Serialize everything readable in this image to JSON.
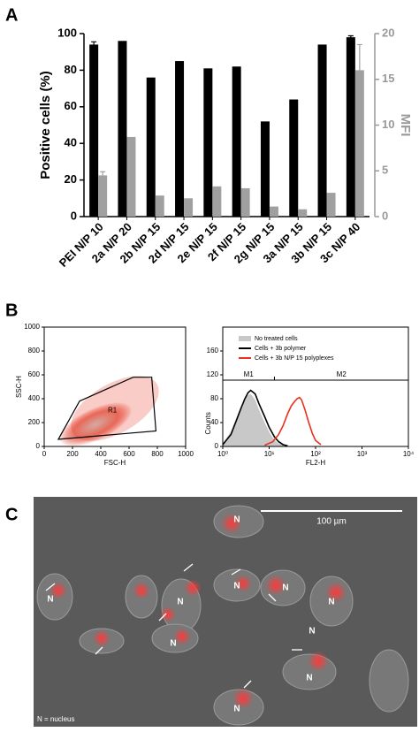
{
  "panel_labels": [
    "A",
    "B",
    "C"
  ],
  "chart_data": [
    {
      "type": "bar",
      "categories": [
        "PEI N/P 10",
        "2a N/P 20",
        "2b N/P 15",
        "2d N/P 15",
        "2e N/P 15",
        "2f N/P 15",
        "2g N/P 15",
        "3a N/P 15",
        "3b N/P 15",
        "3c N/P 40"
      ],
      "ylabel": "Positive cells (%)",
      "y2label": "MFI",
      "ylim": [
        0,
        100
      ],
      "yticks": [
        0,
        20,
        40,
        60,
        80,
        100
      ],
      "y2lim": [
        0,
        20
      ],
      "y2ticks": [
        0,
        5,
        10,
        15,
        20
      ],
      "series": [
        {
          "color": "#000000",
          "values": [
            94,
            96,
            76,
            85,
            81,
            82,
            52,
            64,
            94,
            98
          ],
          "errors": [
            1.5,
            null,
            null,
            null,
            null,
            null,
            null,
            null,
            null,
            0.8
          ]
        },
        {
          "color": "#a0a0a0",
          "axis": "y2",
          "values": [
            4.5,
            8.7,
            2.3,
            2.0,
            3.3,
            3.1,
            1.1,
            0.8,
            2.6,
            16
          ],
          "errors": [
            0.4,
            null,
            null,
            null,
            null,
            null,
            null,
            null,
            null,
            2.8
          ]
        }
      ]
    },
    {
      "type": "scatter",
      "xlabel": "FSC-H",
      "ylabel": "SSC-H",
      "color": "#e8321e",
      "xlim": [
        0,
        1000
      ],
      "xticks": [
        0,
        200,
        400,
        600,
        800,
        1000
      ],
      "ylim": [
        0,
        1000
      ],
      "yticks": [
        0,
        200,
        400,
        600,
        800,
        1000
      ],
      "gate_label": "R1",
      "gate_x": [
        100,
        250,
        630,
        760,
        790
      ],
      "gate_y": [
        60,
        380,
        580,
        580,
        130
      ]
    },
    {
      "type": "line",
      "log_x": true,
      "xlabel": "FL2-H",
      "ylabel": "Counts",
      "xlim": [
        1,
        10000
      ],
      "xticks": [
        {
          "value": 1,
          "label": "10⁰"
        },
        {
          "value": 10,
          "label": "10¹"
        },
        {
          "value": 100,
          "label": "10²"
        },
        {
          "value": 1000,
          "label": "10³"
        },
        {
          "value": 10000,
          "label": "10⁴"
        }
      ],
      "ylim": [
        0,
        200
      ],
      "yticks": [
        0,
        40,
        80,
        120,
        160
      ],
      "markers": [
        {
          "label": "M1",
          "range": [
            1,
            13
          ]
        },
        {
          "label": "M2",
          "range": [
            13,
            10000
          ]
        }
      ],
      "series": [
        {
          "name": "No treated cells",
          "color": "#c8c8c8",
          "filled": true,
          "x": [
            1,
            1.5,
            2,
            2.5,
            3,
            3.5,
            4,
            5,
            6,
            8,
            10,
            13,
            16,
            20
          ],
          "values": [
            5,
            25,
            50,
            68,
            80,
            86,
            88,
            78,
            62,
            40,
            24,
            11,
            5,
            2
          ]
        },
        {
          "name": "Cells + 3b polymer",
          "color": "#000000",
          "x": [
            1,
            1.5,
            2,
            2.5,
            3,
            3.5,
            4,
            5,
            6,
            8,
            10,
            13,
            16,
            20,
            25
          ],
          "values": [
            3,
            20,
            45,
            65,
            80,
            90,
            94,
            88,
            72,
            50,
            32,
            16,
            8,
            3,
            1
          ]
        },
        {
          "name": "Cells + 3b N/P 15 polyplexes",
          "color": "#e8321e",
          "x": [
            8,
            12,
            16,
            20,
            25,
            30,
            35,
            40,
            45,
            50,
            60,
            70,
            85,
            100,
            130
          ],
          "values": [
            2,
            8,
            20,
            35,
            55,
            68,
            75,
            80,
            82,
            78,
            60,
            42,
            22,
            10,
            3
          ]
        }
      ]
    }
  ],
  "micrograph": {
    "scale_bar": "100 µm",
    "legend": "N = nucleus",
    "labels": [
      "N",
      "N",
      "N",
      "N",
      "N",
      "N",
      "N",
      "N",
      "N",
      "N"
    ]
  }
}
